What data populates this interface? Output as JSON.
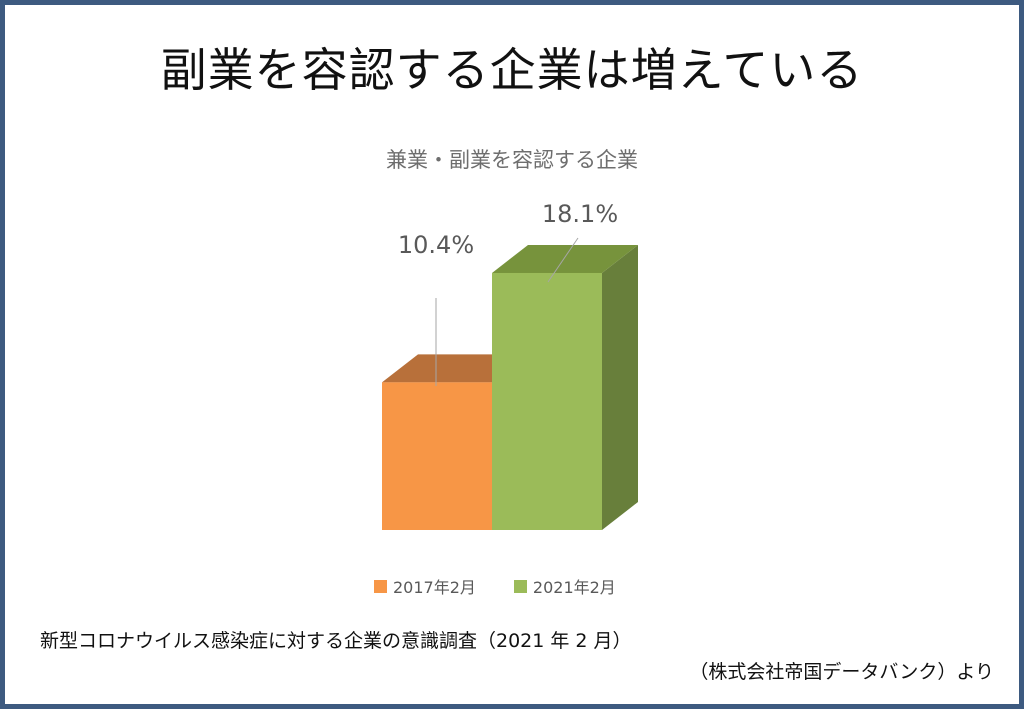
{
  "header": {
    "title": "副業を容認する企業は増えている"
  },
  "chart_data": {
    "type": "bar",
    "title": "兼業・副業を容認する企業",
    "categories": [
      "2017年2月",
      "2021年2月"
    ],
    "values": [
      10.4,
      18.1
    ],
    "value_labels": [
      "10.4%",
      "18.1%"
    ],
    "unit": "%",
    "ylim": [
      0,
      20
    ],
    "grid": false,
    "legend_position": "bottom",
    "three_d": true,
    "colors": {
      "2017年2月": {
        "front": "#f79646",
        "top": "#b8703a",
        "side": "#9c5a2e"
      },
      "2021年2月": {
        "front": "#9bbb59",
        "top": "#77933c",
        "side": "#687f3b"
      }
    }
  },
  "legend": [
    {
      "label": "2017年2月",
      "color": "#f79646"
    },
    {
      "label": "2021年2月",
      "color": "#9bbb59"
    }
  ],
  "footer": {
    "source_line1": "新型コロナウイルス感染症に対する企業の意識調査（2021 年 2 月）",
    "source_line2": "（株式会社帝国データバンク）より"
  }
}
